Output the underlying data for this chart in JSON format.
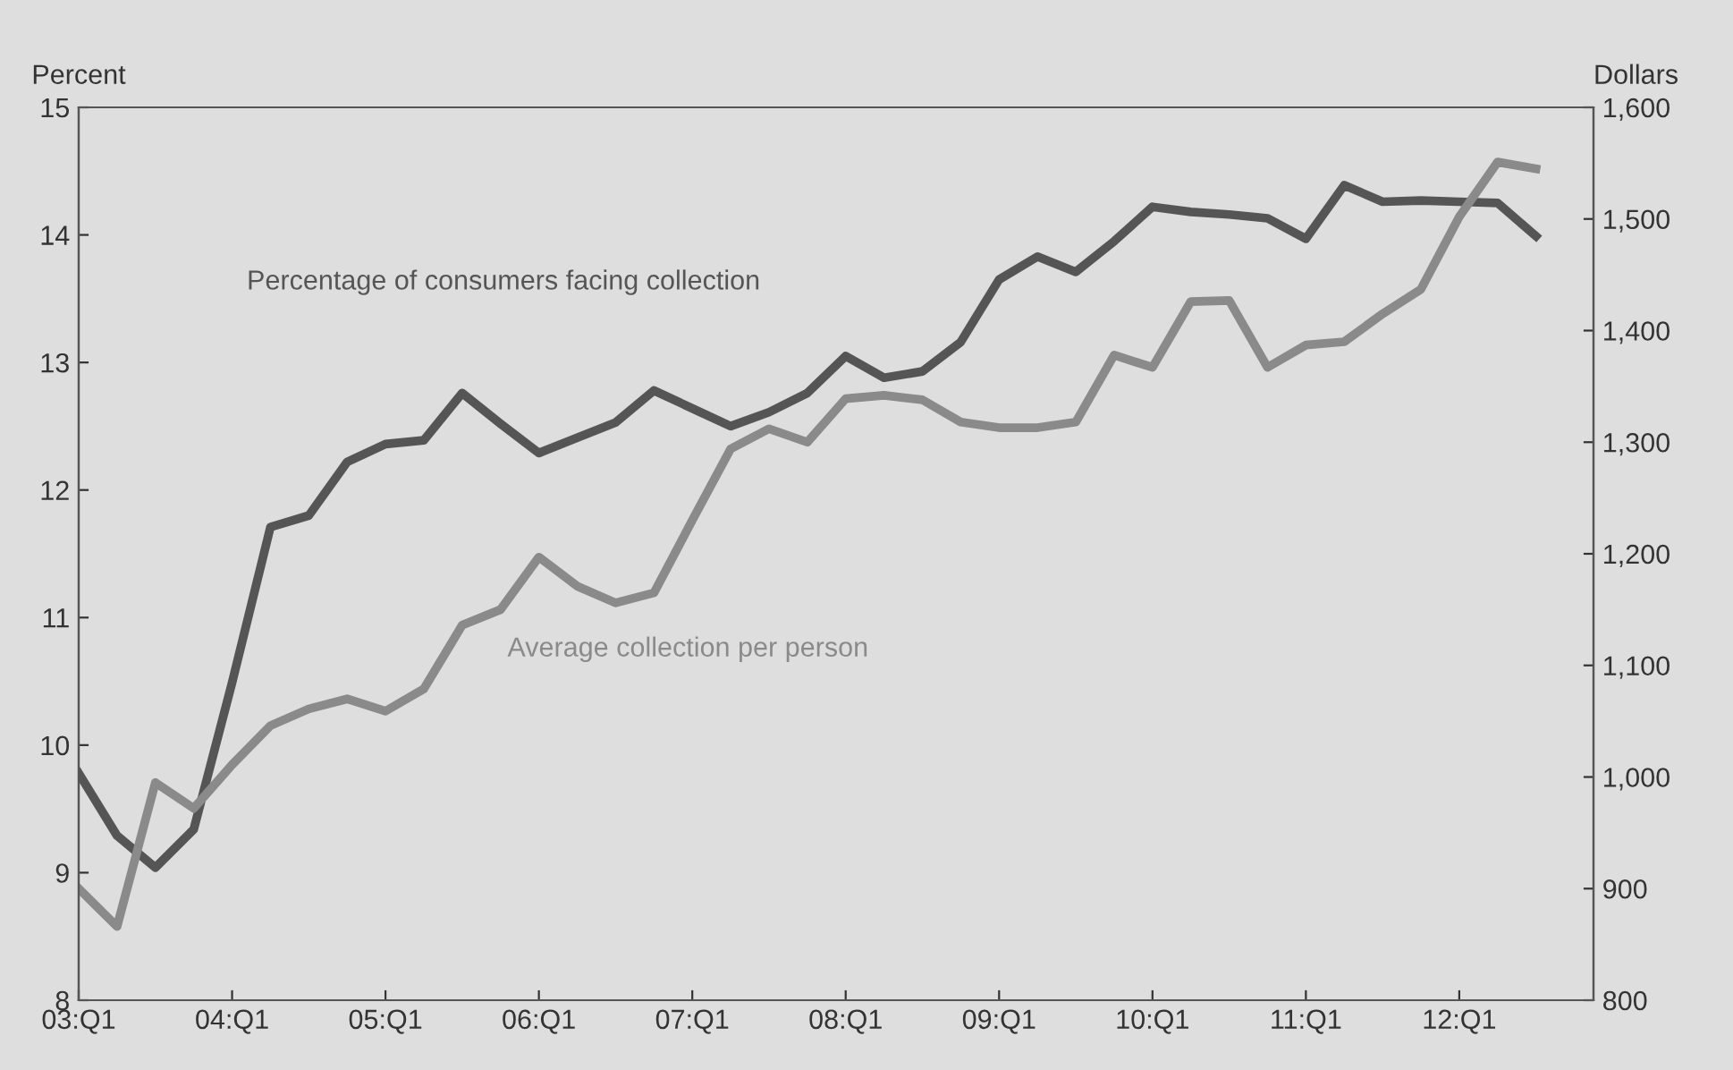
{
  "chart_data": {
    "type": "line",
    "ylabel": "Percent",
    "y2label": "Dollars",
    "categories": [
      "03:Q1",
      null,
      null,
      null,
      "04:Q1",
      null,
      null,
      null,
      "05:Q1",
      null,
      null,
      null,
      "06:Q1",
      null,
      null,
      null,
      "07:Q1",
      null,
      null,
      null,
      "08:Q1",
      null,
      null,
      null,
      "09:Q1",
      null,
      null,
      null,
      "10:Q1",
      null,
      null,
      null,
      "11:Q1",
      null,
      null,
      null,
      "12:Q1",
      null,
      null
    ],
    "series": [
      {
        "name": "Percentage of consumers facing collection",
        "color": "#555555",
        "values": [
          9.78,
          9.29,
          9.04,
          9.34,
          10.49,
          11.71,
          11.8,
          12.22,
          12.36,
          12.39,
          12.76,
          12.52,
          12.29,
          12.41,
          12.53,
          12.78,
          12.64,
          12.5,
          12.61,
          12.76,
          13.05,
          12.88,
          12.93,
          13.16,
          13.65,
          13.83,
          13.71,
          13.95,
          14.22,
          14.18,
          14.16,
          14.13,
          13.97,
          14.39,
          14.26,
          14.27,
          14.26,
          14.25,
          13.99
        ]
      },
      {
        "name": "Average collection per person",
        "color": "#8a8a8a",
        "axis": "y2",
        "values": [
          900,
          866,
          995,
          972,
          1011,
          1046,
          1061,
          1070,
          1059,
          1079,
          1136,
          1150,
          1197,
          1171,
          1156,
          1165,
          1230,
          1294,
          1312,
          1300,
          1339,
          1342,
          1338,
          1318,
          1313,
          1313,
          1318,
          1378,
          1367,
          1426,
          1427,
          1367,
          1387,
          1390,
          1415,
          1437,
          1502,
          1551,
          1545
        ]
      }
    ],
    "ylim": [
      8,
      15
    ],
    "yticks": [
      8,
      9,
      10,
      11,
      12,
      13,
      14,
      15
    ],
    "y2lim": [
      800,
      1600
    ],
    "y2ticks": [
      800,
      900,
      {
        "value": 1000,
        "label": "1,000"
      },
      {
        "value": 1100,
        "label": "1,100"
      },
      {
        "value": 1200,
        "label": "1,200"
      },
      {
        "value": 1300,
        "label": "1,300"
      },
      {
        "value": 1400,
        "label": "1,400"
      },
      {
        "value": 1500,
        "label": "1,500"
      },
      {
        "value": 1600,
        "label": "1,600"
      }
    ],
    "grid": false,
    "legend": false,
    "marker": "none",
    "line_style": "solid"
  }
}
